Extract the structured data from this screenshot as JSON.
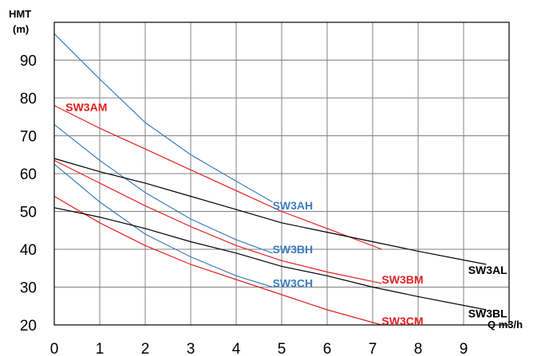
{
  "chart_data": {
    "type": "line",
    "xlabel": "Q m3/h",
    "ylabel": [
      "HMT",
      "(m)"
    ],
    "xlim": [
      0,
      10
    ],
    "ylim": [
      20,
      100
    ],
    "xticks": [
      0,
      1,
      2,
      3,
      4,
      5,
      6,
      7,
      8,
      9
    ],
    "yticks": [
      20,
      30,
      40,
      50,
      60,
      70,
      80,
      90
    ],
    "grid": true,
    "legend": "inline labels",
    "series": [
      {
        "name": "SW3AH",
        "color": "#3b7dbd",
        "label_at": [
          4.8,
          50.5
        ],
        "x": [
          0,
          1,
          2,
          3,
          4,
          4.8
        ],
        "y": [
          97,
          85,
          73.5,
          65,
          58,
          52.5
        ]
      },
      {
        "name": "SW3BH",
        "color": "#3b7dbd",
        "label_at": [
          4.8,
          39
        ],
        "x": [
          0,
          1,
          2,
          3,
          4,
          4.8
        ],
        "y": [
          73,
          63.5,
          55,
          48,
          42.5,
          39
        ]
      },
      {
        "name": "SW3CH",
        "color": "#3b7dbd",
        "label_at": [
          4.8,
          30
        ],
        "x": [
          0,
          1,
          2,
          3,
          4,
          4.8
        ],
        "y": [
          62.5,
          52.5,
          44,
          38,
          33,
          30
        ]
      },
      {
        "name": "SW3AM",
        "color": "#e02020",
        "label_at": [
          0.25,
          76.5
        ],
        "x": [
          0,
          1,
          2,
          3,
          4,
          5,
          6,
          7.2
        ],
        "y": [
          78,
          72,
          66.5,
          61,
          55.5,
          50,
          45.5,
          40
        ]
      },
      {
        "name": "SW3BM",
        "color": "#e02020",
        "label_at": [
          7.2,
          31
        ],
        "x": [
          0,
          1,
          2,
          3,
          4,
          5,
          6,
          7.2
        ],
        "y": [
          63.5,
          57.5,
          51.5,
          46,
          41,
          37,
          34,
          31
        ]
      },
      {
        "name": "SW3CM",
        "color": "#e02020",
        "label_at": [
          7.2,
          20
        ],
        "x": [
          0,
          1,
          2,
          3,
          4,
          5,
          6,
          7.2
        ],
        "y": [
          54,
          47,
          41,
          36,
          32,
          28,
          24,
          20
        ]
      },
      {
        "name": "SW3AL",
        "color": "#000000",
        "label_at": [
          9.1,
          33.5
        ],
        "x": [
          0,
          1,
          2,
          3,
          4,
          5,
          6,
          7,
          8,
          9.5
        ],
        "y": [
          64,
          60.5,
          57.5,
          54,
          50.5,
          47,
          44.5,
          42,
          39.5,
          36
        ]
      },
      {
        "name": "SW3BL",
        "color": "#000000",
        "label_at": [
          9.1,
          22
        ],
        "x": [
          0,
          1,
          2,
          3,
          4,
          5,
          6,
          7,
          8,
          9.5
        ],
        "y": [
          51,
          48.5,
          45.5,
          42,
          39,
          35.5,
          33,
          30,
          27.5,
          24
        ]
      }
    ]
  }
}
